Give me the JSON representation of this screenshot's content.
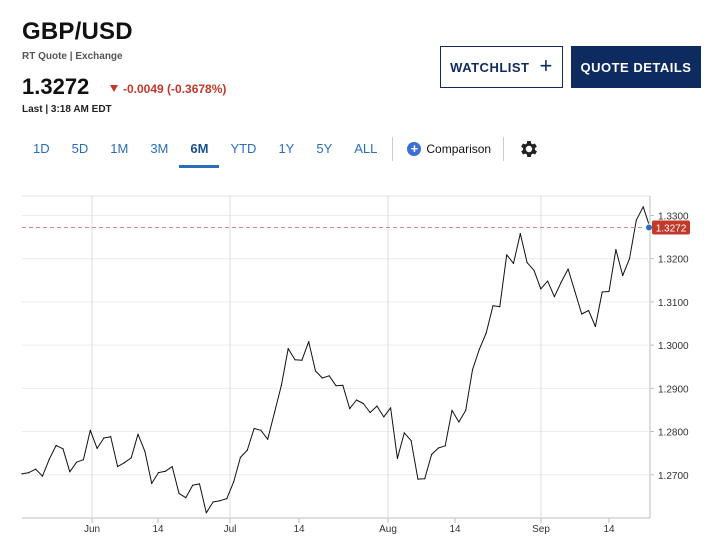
{
  "header": {
    "title": "GBP/USD",
    "subtitle": "RT Quote | Exchange",
    "price": "1.3272",
    "change": "-0.0049 (-0.3678%)",
    "last_updated": "Last | 3:18 AM EDT"
  },
  "buttons": {
    "watchlist_label": "WATCHLIST",
    "quote_details_label": "QUOTE DETAILS"
  },
  "tabs": [
    {
      "label": "1D"
    },
    {
      "label": "5D"
    },
    {
      "label": "1M"
    },
    {
      "label": "3M"
    },
    {
      "label": "6M",
      "active": true
    },
    {
      "label": "YTD"
    },
    {
      "label": "1Y"
    },
    {
      "label": "5Y"
    },
    {
      "label": "ALL"
    }
  ],
  "comparison_label": "Comparison",
  "colors": {
    "accent": "#0d2b5e",
    "tab_text": "#2a6ebb",
    "negative": "#c0392b",
    "current_marker": "#2a6ebb"
  },
  "chart_data": {
    "type": "line",
    "title": "",
    "xlabel": "",
    "ylabel": "",
    "x_ticks": [
      "Jun",
      "14",
      "Jul",
      "14",
      "Aug",
      "14",
      "Sep",
      "14"
    ],
    "y_ticks": [
      1.27,
      1.28,
      1.29,
      1.3,
      1.31,
      1.32,
      1.33
    ],
    "y_tick_labels": [
      "1.2700",
      "1.2800",
      "1.2900",
      "1.3000",
      "1.3100",
      "1.3200",
      "1.3300"
    ],
    "ylim": [
      1.26,
      1.3345
    ],
    "grid": true,
    "current_value": 1.3272,
    "current_label": "1.3272",
    "series": [
      {
        "values": [
          1.2702,
          1.2705,
          1.2713,
          1.2697,
          1.2736,
          1.2768,
          1.276,
          1.2707,
          1.2729,
          1.2735,
          1.2803,
          1.2761,
          1.2785,
          1.2788,
          1.2719,
          1.2728,
          1.2739,
          1.2794,
          1.2754,
          1.268,
          1.2705,
          1.2708,
          1.2719,
          1.2657,
          1.2647,
          1.2676,
          1.2679,
          1.2612,
          1.2637,
          1.264,
          1.2645,
          1.2683,
          1.274,
          1.2757,
          1.2807,
          1.2803,
          1.2782,
          1.2845,
          1.2907,
          1.2992,
          1.2966,
          1.2965,
          1.3008,
          1.294,
          1.2924,
          1.2929,
          1.2906,
          1.2907,
          1.2853,
          1.2873,
          1.2865,
          1.2844,
          1.2859,
          1.2834,
          1.2855,
          1.2738,
          1.2797,
          1.2779,
          1.269,
          1.2691,
          1.2747,
          1.2762,
          1.2767,
          1.2849,
          1.2822,
          1.2849,
          1.2943,
          1.299,
          1.3028,
          1.3091,
          1.3089,
          1.3209,
          1.3189,
          1.3258,
          1.3191,
          1.3173,
          1.313,
          1.3148,
          1.3112,
          1.3146,
          1.3176,
          1.3124,
          1.3072,
          1.308,
          1.3043,
          1.3123,
          1.3124,
          1.3221,
          1.3161,
          1.32,
          1.3289,
          1.332,
          1.3272
        ]
      }
    ]
  }
}
